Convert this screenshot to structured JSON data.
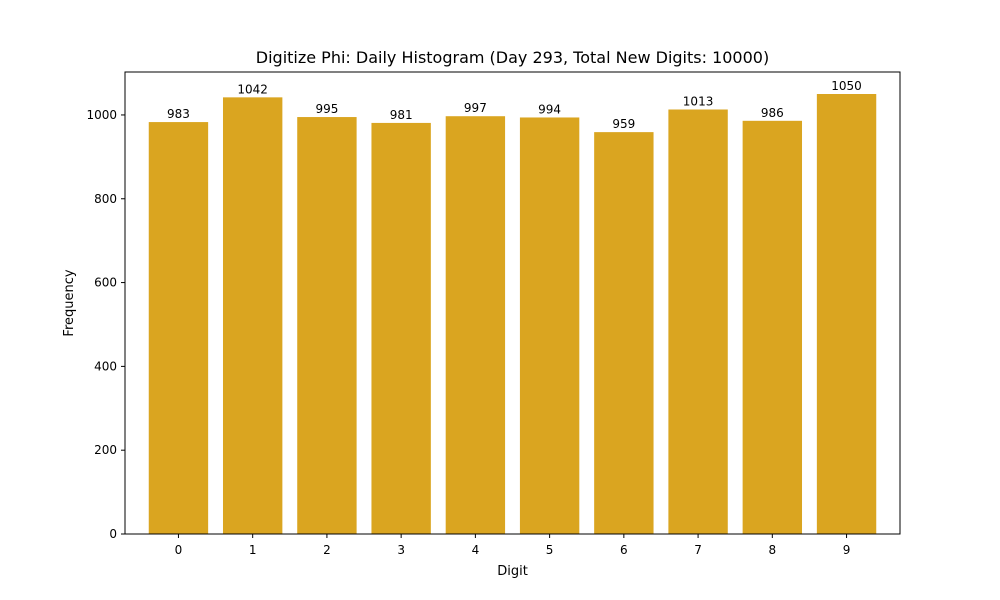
{
  "chart_data": {
    "type": "bar",
    "title": "Digitize Phi: Daily Histogram (Day 293, Total New Digits: 10000)",
    "xlabel": "Digit",
    "ylabel": "Frequency",
    "categories": [
      "0",
      "1",
      "2",
      "3",
      "4",
      "5",
      "6",
      "7",
      "8",
      "9"
    ],
    "values": [
      983,
      1042,
      995,
      981,
      997,
      994,
      959,
      1013,
      986,
      1050
    ],
    "data_labels": [
      "983",
      "1042",
      "995",
      "981",
      "997",
      "994",
      "959",
      "1013",
      "986",
      "1050"
    ],
    "ylim": [
      0,
      1102.5
    ],
    "yticks": [
      0,
      200,
      400,
      600,
      800,
      1000
    ],
    "ytick_labels": [
      "0",
      "200",
      "400",
      "600",
      "800",
      "1000"
    ],
    "bar_color": "#DAA520",
    "grid": false,
    "legend": "none"
  }
}
